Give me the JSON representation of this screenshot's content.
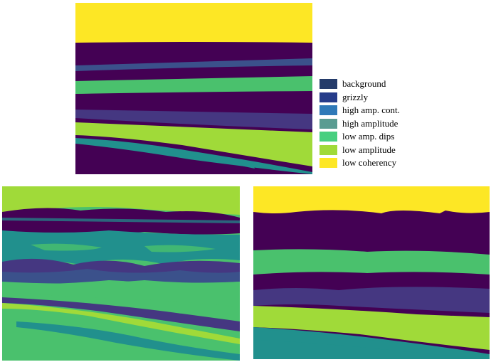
{
  "colors": {
    "background": "#453781",
    "dark": "#440154",
    "grizzly": "#3b518b",
    "teal": "#21908d",
    "green": "#4ac16d",
    "lime": "#a0da39",
    "yellow": "#fde725"
  },
  "legend": [
    {
      "label": "background",
      "color": "#243b6a"
    },
    {
      "label": "grizzly",
      "color": "#263c8a"
    },
    {
      "label": "high amp. cont.",
      "color": "#2f79b8"
    },
    {
      "label": "high amplitude",
      "color": "#5a9c92"
    },
    {
      "label": "low amp. dips",
      "color": "#47cf7f"
    },
    {
      "label": "low amplitude",
      "color": "#a0da39"
    },
    {
      "label": "low coherency",
      "color": "#fde725"
    }
  ]
}
